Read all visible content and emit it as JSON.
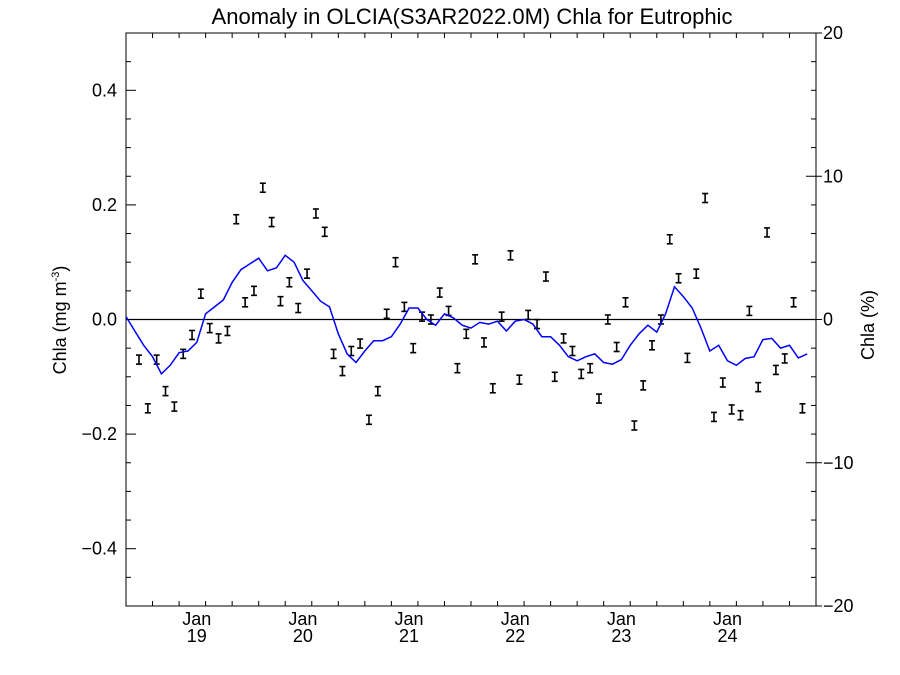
{
  "chart_data": {
    "type": "line",
    "title": "Anomaly in OLCIA(S3AR2022.0M) Chla for Eutrophic",
    "ylabel_left": "Chla (mg m",
    "ylabel_left_sup": "-3",
    "ylabel_left_close": ")",
    "ylabel_right": "Chla (%)",
    "ylim_left": [
      -0.5,
      0.5
    ],
    "ylim_right": [
      -20,
      20
    ],
    "xlim": [
      "2018-05-01",
      "2024-11-01"
    ],
    "yticks_left": [
      {
        "value": 0.4,
        "label": "0.4"
      },
      {
        "value": 0.2,
        "label": "0.2"
      },
      {
        "value": 0.0,
        "label": "0.0"
      },
      {
        "value": -0.2,
        "label": "−0.2"
      },
      {
        "value": -0.4,
        "label": "−0.4"
      }
    ],
    "yticks_right": [
      {
        "value": 20,
        "label": "20"
      },
      {
        "value": 10,
        "label": "10"
      },
      {
        "value": 0,
        "label": "0"
      },
      {
        "value": -10,
        "label": "−10"
      },
      {
        "value": -20,
        "label": "−20"
      }
    ],
    "xticks": [
      {
        "date": "2019-01-01",
        "month": "Jan",
        "year": "19"
      },
      {
        "date": "2020-01-01",
        "month": "Jan",
        "year": "20"
      },
      {
        "date": "2021-01-01",
        "month": "Jan",
        "year": "21"
      },
      {
        "date": "2022-01-01",
        "month": "Jan",
        "year": "22"
      },
      {
        "date": "2023-01-01",
        "month": "Jan",
        "year": "23"
      },
      {
        "date": "2024-01-01",
        "month": "Jan",
        "year": "24"
      }
    ],
    "zero_line": true,
    "colors": {
      "line": "#0000ff",
      "markers": "#000000",
      "axes": "#000000"
    },
    "series": [
      {
        "kind": "errorbar-markers",
        "points": [
          [
            "2018-06",
            -0.07
          ],
          [
            "2018-07",
            -0.155
          ],
          [
            "2018-08",
            -0.07
          ],
          [
            "2018-09",
            -0.125
          ],
          [
            "2018-10",
            -0.152
          ],
          [
            "2018-11",
            -0.06
          ],
          [
            "2018-12",
            -0.027
          ],
          [
            "2019-01",
            0.045
          ],
          [
            "2019-02",
            -0.015
          ],
          [
            "2019-03",
            -0.033
          ],
          [
            "2019-04",
            -0.02
          ],
          [
            "2019-05",
            0.175
          ],
          [
            "2019-06",
            0.03
          ],
          [
            "2019-07",
            0.05
          ],
          [
            "2019-08",
            0.23
          ],
          [
            "2019-09",
            0.17
          ],
          [
            "2019-10",
            0.032
          ],
          [
            "2019-11",
            0.065
          ],
          [
            "2019-12",
            0.02
          ],
          [
            "2020-01",
            0.08
          ],
          [
            "2020-02",
            0.185
          ],
          [
            "2020-03",
            0.153
          ],
          [
            "2020-04",
            -0.06
          ],
          [
            "2020-05",
            -0.09
          ],
          [
            "2020-06",
            -0.055
          ],
          [
            "2020-07",
            -0.042
          ],
          [
            "2020-08",
            -0.175
          ],
          [
            "2020-09",
            -0.125
          ],
          [
            "2020-10",
            0.01
          ],
          [
            "2020-11",
            0.1
          ],
          [
            "2020-12",
            0.022
          ],
          [
            "2021-01",
            -0.05
          ],
          [
            "2021-02",
            0.005
          ],
          [
            "2021-03",
            0.0
          ],
          [
            "2021-04",
            0.047
          ],
          [
            "2021-05",
            0.015
          ],
          [
            "2021-06",
            -0.085
          ],
          [
            "2021-07",
            -0.025
          ],
          [
            "2021-08",
            0.105
          ],
          [
            "2021-09",
            -0.04
          ],
          [
            "2021-10",
            -0.12
          ],
          [
            "2021-11",
            0.005
          ],
          [
            "2021-12",
            0.112
          ],
          [
            "2022-01",
            -0.105
          ],
          [
            "2022-02",
            0.008
          ],
          [
            "2022-03",
            -0.008
          ],
          [
            "2022-04",
            0.075
          ],
          [
            "2022-05",
            -0.1
          ],
          [
            "2022-06",
            -0.033
          ],
          [
            "2022-07",
            -0.055
          ],
          [
            "2022-08",
            -0.095
          ],
          [
            "2022-09",
            -0.085
          ],
          [
            "2022-10",
            -0.138
          ],
          [
            "2022-11",
            0.0
          ],
          [
            "2022-12",
            -0.048
          ],
          [
            "2023-01",
            0.03
          ],
          [
            "2023-02",
            -0.185
          ],
          [
            "2023-03",
            -0.115
          ],
          [
            "2023-04",
            -0.045
          ],
          [
            "2023-05",
            0.0
          ],
          [
            "2023-06",
            0.14
          ],
          [
            "2023-07",
            0.072
          ],
          [
            "2023-08",
            -0.067
          ],
          [
            "2023-09",
            0.08
          ],
          [
            "2023-10",
            0.212
          ],
          [
            "2023-11",
            -0.17
          ],
          [
            "2023-12",
            -0.11
          ],
          [
            "2024-01",
            -0.157
          ],
          [
            "2024-02",
            -0.167
          ],
          [
            "2024-03",
            0.015
          ],
          [
            "2024-04",
            -0.118
          ],
          [
            "2024-05",
            0.152
          ],
          [
            "2024-06",
            -0.088
          ],
          [
            "2024-07",
            -0.068
          ],
          [
            "2024-08",
            0.03
          ],
          [
            "2024-09",
            -0.155
          ]
        ]
      },
      {
        "kind": "line",
        "points": [
          [
            "2018-05",
            0.005
          ],
          [
            "2018-06",
            -0.02
          ],
          [
            "2018-07",
            -0.045
          ],
          [
            "2018-08",
            -0.065
          ],
          [
            "2018-09",
            -0.095
          ],
          [
            "2018-10",
            -0.08
          ],
          [
            "2018-11",
            -0.058
          ],
          [
            "2018-12",
            -0.055
          ],
          [
            "2019-01",
            -0.04
          ],
          [
            "2019-02",
            0.01
          ],
          [
            "2019-03",
            0.022
          ],
          [
            "2019-04",
            0.034
          ],
          [
            "2019-05",
            0.065
          ],
          [
            "2019-06",
            0.087
          ],
          [
            "2019-07",
            0.097
          ],
          [
            "2019-08",
            0.107
          ],
          [
            "2019-09",
            0.085
          ],
          [
            "2019-10",
            0.09
          ],
          [
            "2019-11",
            0.112
          ],
          [
            "2019-12",
            0.1
          ],
          [
            "2020-01",
            0.068
          ],
          [
            "2020-02",
            0.05
          ],
          [
            "2020-03",
            0.032
          ],
          [
            "2020-04",
            0.022
          ],
          [
            "2020-05",
            -0.025
          ],
          [
            "2020-06",
            -0.06
          ],
          [
            "2020-07",
            -0.075
          ],
          [
            "2020-08",
            -0.055
          ],
          [
            "2020-09",
            -0.037
          ],
          [
            "2020-10",
            -0.037
          ],
          [
            "2020-11",
            -0.03
          ],
          [
            "2020-12",
            -0.008
          ],
          [
            "2021-01",
            0.02
          ],
          [
            "2021-02",
            0.02
          ],
          [
            "2021-03",
            0.0
          ],
          [
            "2021-04",
            -0.01
          ],
          [
            "2021-05",
            0.01
          ],
          [
            "2021-06",
            0.003
          ],
          [
            "2021-07",
            -0.01
          ],
          [
            "2021-08",
            -0.015
          ],
          [
            "2021-09",
            -0.005
          ],
          [
            "2021-10",
            -0.008
          ],
          [
            "2021-11",
            -0.003
          ],
          [
            "2021-12",
            -0.02
          ],
          [
            "2022-01",
            -0.003
          ],
          [
            "2022-02",
            0.0
          ],
          [
            "2022-03",
            -0.008
          ],
          [
            "2022-04",
            -0.03
          ],
          [
            "2022-05",
            -0.03
          ],
          [
            "2022-06",
            -0.045
          ],
          [
            "2022-07",
            -0.065
          ],
          [
            "2022-08",
            -0.072
          ],
          [
            "2022-09",
            -0.065
          ],
          [
            "2022-10",
            -0.06
          ],
          [
            "2022-11",
            -0.075
          ],
          [
            "2022-12",
            -0.078
          ],
          [
            "2023-01",
            -0.07
          ],
          [
            "2023-02",
            -0.045
          ],
          [
            "2023-03",
            -0.025
          ],
          [
            "2023-04",
            -0.01
          ],
          [
            "2023-05",
            -0.022
          ],
          [
            "2023-06",
            0.01
          ],
          [
            "2023-07",
            0.057
          ],
          [
            "2023-08",
            0.04
          ],
          [
            "2023-09",
            0.02
          ],
          [
            "2023-10",
            -0.015
          ],
          [
            "2023-11",
            -0.055
          ],
          [
            "2023-12",
            -0.045
          ],
          [
            "2024-01",
            -0.072
          ],
          [
            "2024-02",
            -0.08
          ],
          [
            "2024-03",
            -0.068
          ],
          [
            "2024-04",
            -0.065
          ],
          [
            "2024-05",
            -0.035
          ],
          [
            "2024-06",
            -0.033
          ],
          [
            "2024-07",
            -0.05
          ],
          [
            "2024-08",
            -0.045
          ],
          [
            "2024-09",
            -0.067
          ],
          [
            "2024-10",
            -0.06
          ]
        ]
      }
    ]
  }
}
